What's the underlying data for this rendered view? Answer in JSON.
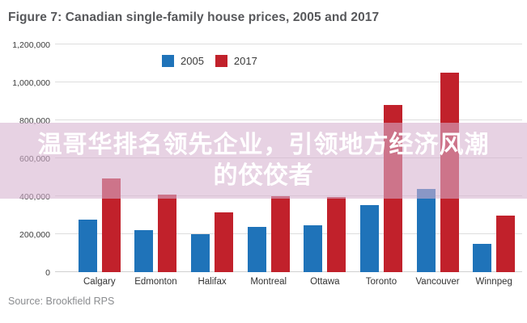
{
  "figure": {
    "title": "Figure 7: Canadian single-family house prices, 2005 and 2017",
    "source": "Source: Brookfield RPS"
  },
  "overlay": {
    "line1": "温哥华排名领先企业，引领地方经济风潮",
    "line2": "的佼佼者",
    "band_color": "rgba(213,177,206,0.58)",
    "text_color": "#ffffff"
  },
  "chart_data": {
    "type": "bar",
    "title": "Figure 7: Canadian single-family house prices, 2005 and 2017",
    "categories": [
      "Calgary",
      "Edmonton",
      "Halifax",
      "Montreal",
      "Ottawa",
      "Toronto",
      "Vancouver",
      "Winnpeg"
    ],
    "series": [
      {
        "name": "2005",
        "color": "#1f73b9",
        "values": [
          275000,
          220000,
          200000,
          240000,
          245000,
          355000,
          440000,
          150000
        ]
      },
      {
        "name": "2017",
        "color": "#c1212b",
        "values": [
          495000,
          410000,
          315000,
          400000,
          395000,
          880000,
          1050000,
          300000
        ]
      }
    ],
    "ylim": [
      0,
      1200000
    ],
    "ytick_step": 200000,
    "ytick_labels": [
      "0",
      "200,000",
      "400,000",
      "600,000",
      "800,000",
      "1,000,000",
      "1,200,000"
    ],
    "grid": true,
    "legend_position": "top-left",
    "gridline_color": "#dddddd"
  }
}
